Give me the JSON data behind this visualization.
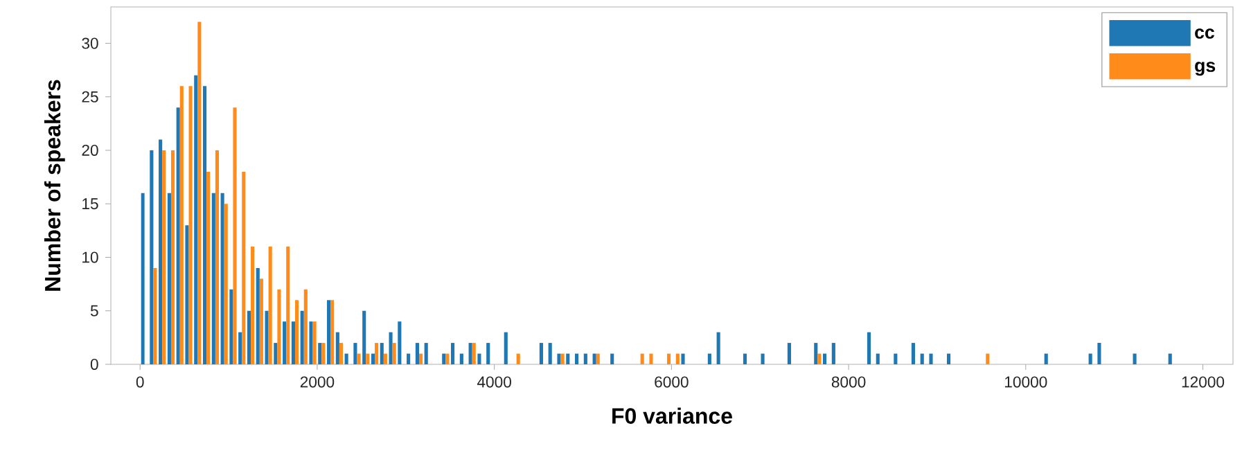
{
  "chart_data": {
    "type": "histogram",
    "xlabel": "F0 variance",
    "ylabel": "Number of speakers",
    "bins": [
      0,
      100,
      200,
      300,
      400,
      500,
      600,
      700,
      800,
      900,
      1000,
      1100,
      1200,
      1300,
      1400,
      1500,
      1600,
      1700,
      1800,
      1900,
      2000,
      2100,
      2200,
      2300,
      2400,
      2500,
      2600,
      2700,
      2800,
      2900,
      3000,
      3100,
      3200,
      3300,
      3400,
      3500,
      3600,
      3700,
      3800,
      3900,
      4000,
      4100,
      4200,
      4300,
      4400,
      4500,
      4600,
      4700,
      4800,
      4900,
      5000,
      5100,
      5200,
      5300,
      5400,
      5500,
      5600,
      5700,
      5800,
      5900,
      6000,
      6100,
      6200,
      6300,
      6400,
      6500,
      6600,
      6700,
      6800,
      6900,
      7000,
      7100,
      7200,
      7300,
      7400,
      7500,
      7600,
      7700,
      7800,
      7900,
      8000,
      8100,
      8200,
      8300,
      8400,
      8500,
      8600,
      8700,
      8800,
      8900,
      9000,
      9100,
      9200,
      9300,
      9400,
      9500,
      9600,
      9700,
      9800,
      9900,
      10000,
      10100,
      10200,
      10300,
      10400,
      10500,
      10600,
      10700,
      10800,
      10900,
      11000,
      11100,
      11200,
      11300,
      11400,
      11500,
      11600,
      11700
    ],
    "series": [
      {
        "name": "cc",
        "color": "#1f77b4",
        "values": [
          16,
          20,
          21,
          16,
          24,
          13,
          27,
          26,
          16,
          16,
          7,
          3,
          5,
          9,
          5,
          2,
          4,
          4,
          5,
          4,
          2,
          6,
          3,
          1,
          2,
          5,
          1,
          2,
          3,
          4,
          1,
          2,
          2,
          0,
          1,
          2,
          1,
          2,
          1,
          2,
          0,
          3,
          0,
          0,
          0,
          2,
          2,
          1,
          1,
          1,
          1,
          1,
          0,
          1,
          0,
          0,
          0,
          0,
          0,
          0,
          0,
          1,
          0,
          0,
          1,
          3,
          0,
          0,
          1,
          0,
          1,
          0,
          0,
          2,
          0,
          0,
          2,
          1,
          2,
          0,
          0,
          0,
          3,
          1,
          0,
          1,
          0,
          2,
          1,
          1,
          0,
          1,
          0,
          0,
          0,
          0,
          0,
          0,
          0,
          0,
          0,
          0,
          1,
          0,
          0,
          0,
          0,
          1,
          2,
          0,
          0,
          0,
          1,
          0,
          0,
          0,
          1
        ]
      },
      {
        "name": "gs",
        "color": "#ff8c1a",
        "values": [
          0,
          9,
          20,
          20,
          26,
          26,
          32,
          18,
          20,
          15,
          24,
          18,
          11,
          8,
          11,
          7,
          11,
          6,
          7,
          4,
          2,
          6,
          2,
          0,
          1,
          1,
          2,
          1,
          2,
          0,
          0,
          1,
          0,
          0,
          1,
          0,
          0,
          2,
          0,
          0,
          0,
          0,
          1,
          0,
          0,
          0,
          0,
          1,
          0,
          0,
          0,
          1,
          0,
          0,
          0,
          0,
          1,
          1,
          0,
          1,
          1,
          0,
          0,
          0,
          0,
          0,
          0,
          0,
          0,
          0,
          0,
          0,
          0,
          0,
          0,
          0,
          1,
          0,
          0,
          0,
          0,
          0,
          0,
          0,
          0,
          0,
          0,
          0,
          0,
          0,
          0,
          0,
          0,
          0,
          0,
          1,
          0,
          0,
          0,
          0,
          0,
          0,
          0,
          0,
          0,
          0,
          0,
          0,
          0,
          0,
          0,
          0,
          0,
          0,
          0,
          0,
          0
        ]
      }
    ],
    "xlim": [
      -330,
      12340
    ],
    "ylim": [
      0,
      33.4
    ],
    "xticks": [
      0,
      2000,
      4000,
      6000,
      8000,
      10000,
      12000
    ],
    "yticks": [
      0,
      5,
      10,
      15,
      20,
      25,
      30
    ],
    "legend": "top right"
  }
}
